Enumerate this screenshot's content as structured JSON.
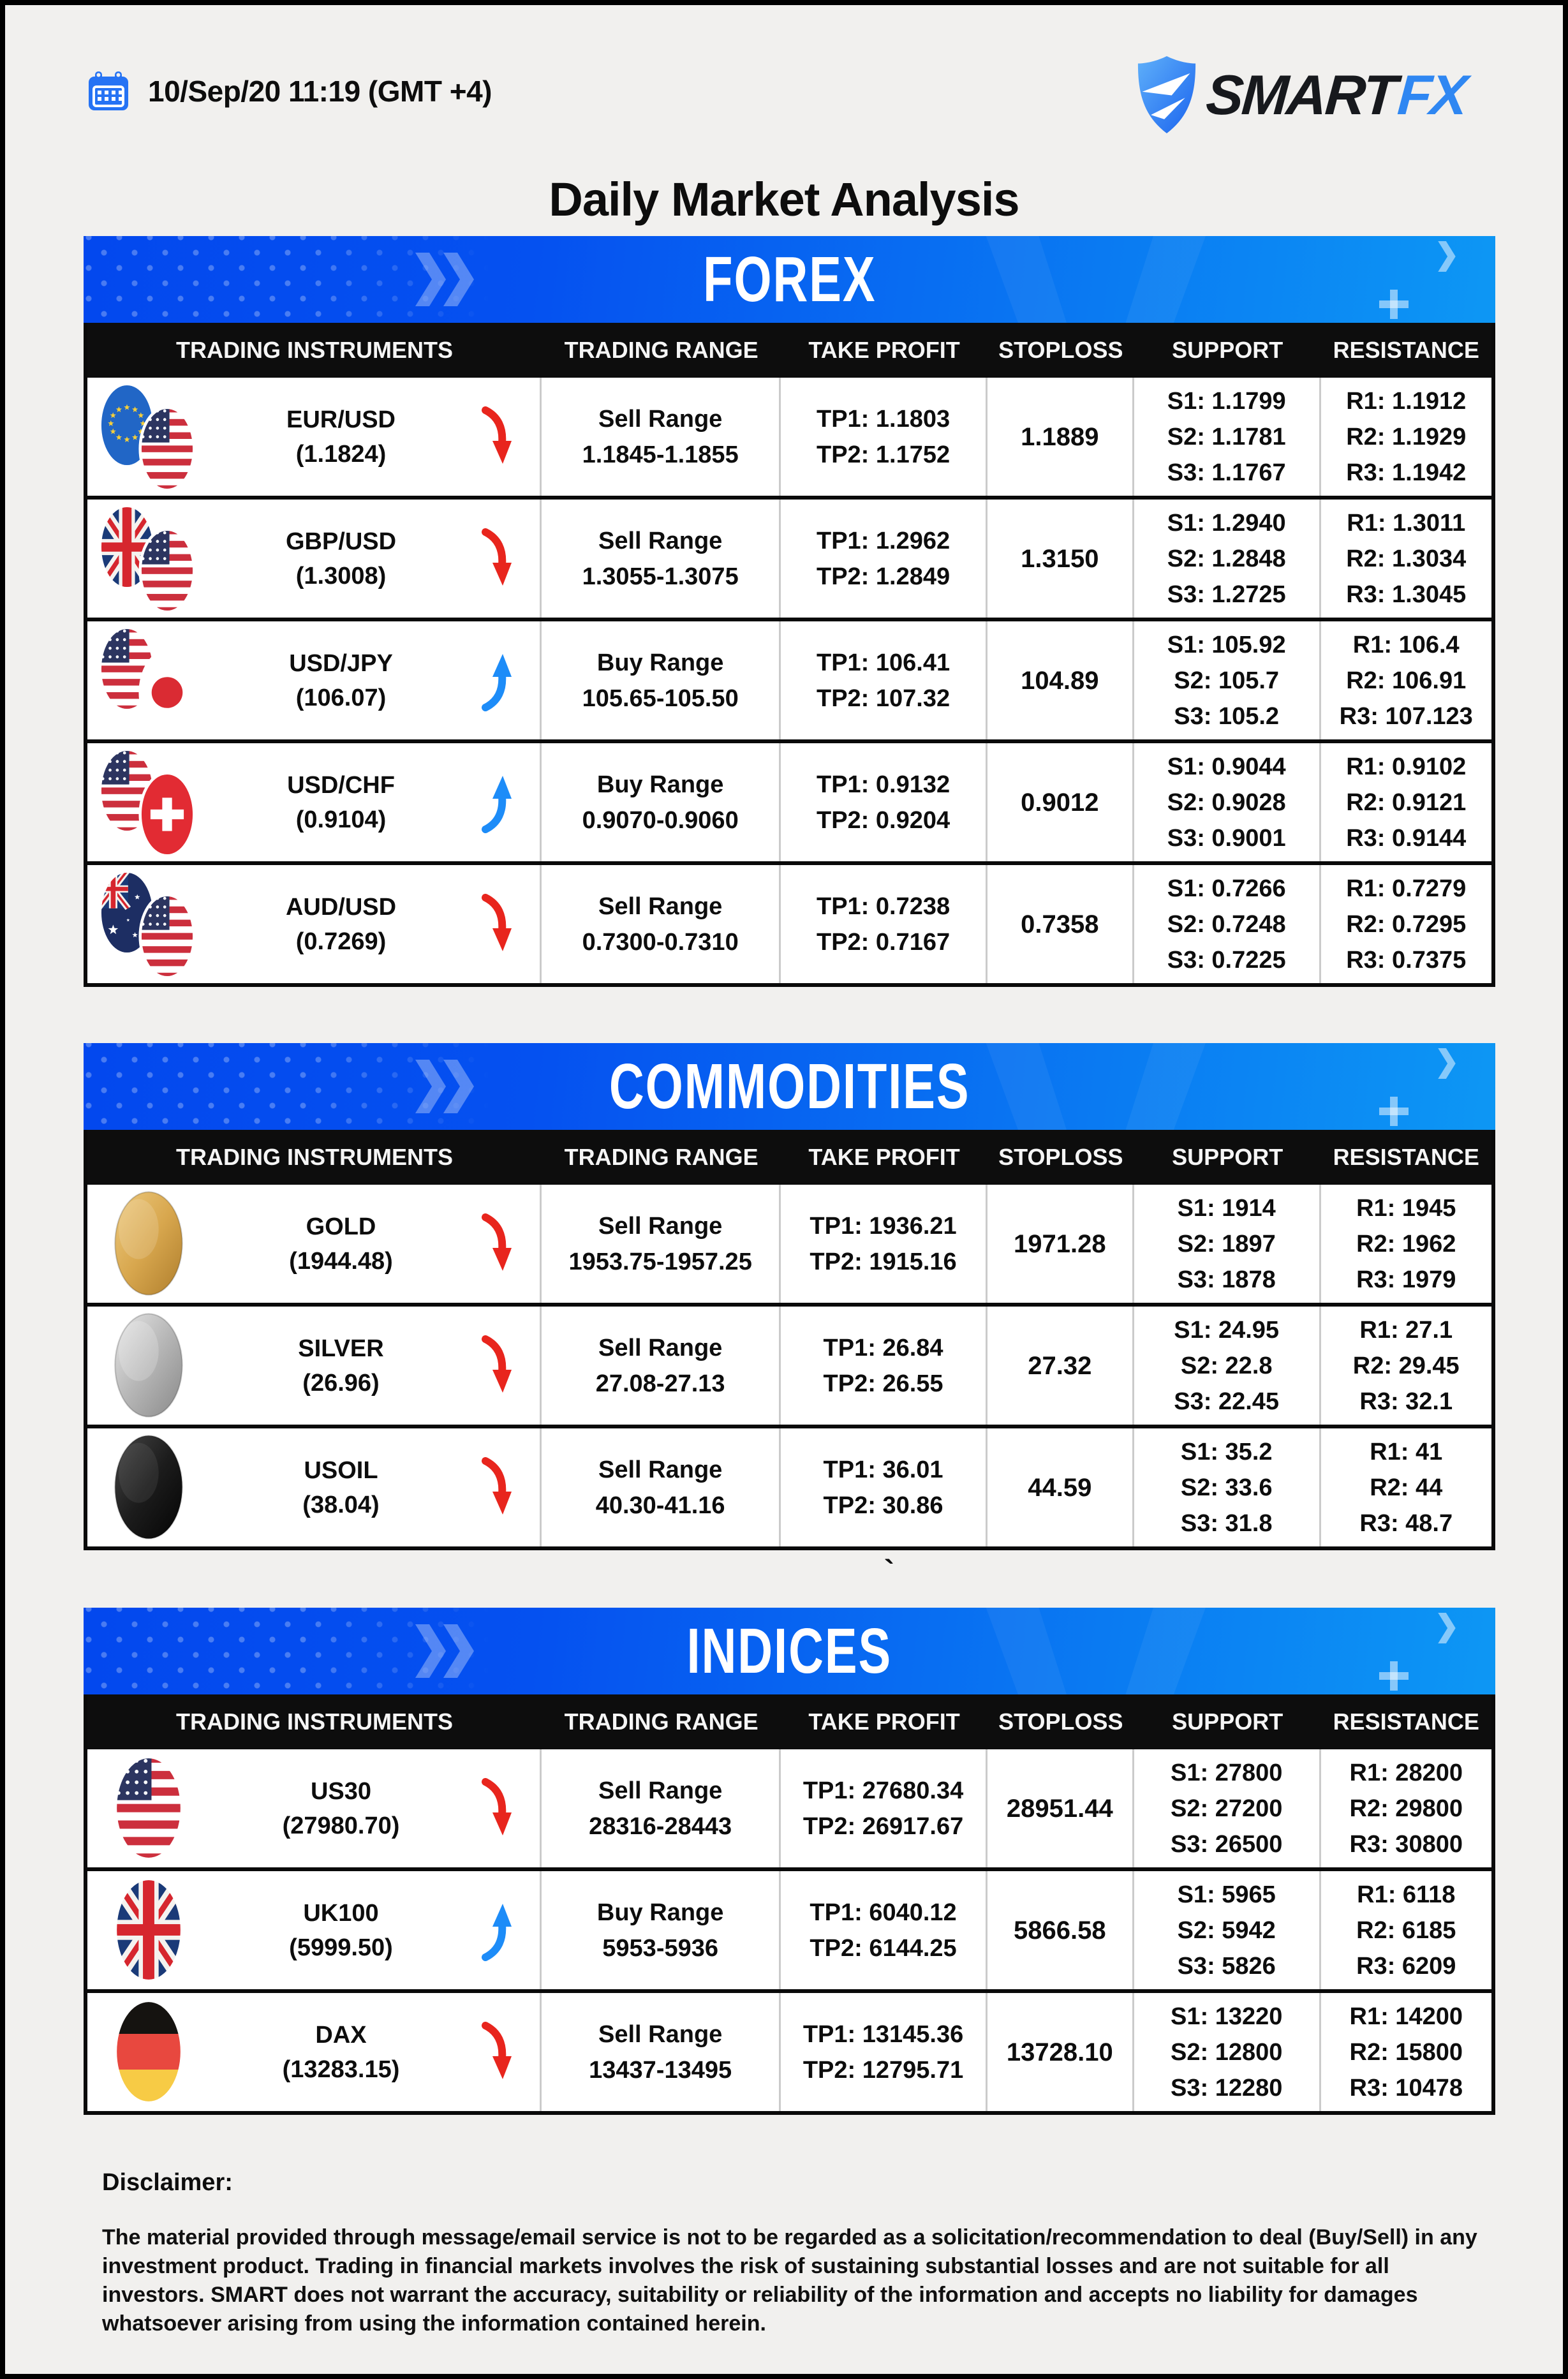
{
  "page": {
    "date": "10/Sep/20 11:19 (GMT +4)",
    "title": "Daily Market Analysis",
    "brand": {
      "smart": "SMART",
      "fx": "FX"
    },
    "stray_character": "`",
    "watermark_glyph": "V"
  },
  "colors": {
    "banner_gradient_start": "#0348ee",
    "banner_gradient_end": "#0d97f4",
    "header_row_bg": "#0d0d0d",
    "up_arrow": "#1d8cf8",
    "down_arrow": "#e8251d",
    "brand_blue": "#2f87f2",
    "calendar_blue": "#2673f4",
    "page_bg": "#f1f0ee"
  },
  "table_columns": [
    "TRADING INSTRUMENTS",
    "TRADING RANGE",
    "TAKE PROFIT",
    "STOPLOSS",
    "SUPPORT",
    "RESISTANCE"
  ],
  "sections": [
    {
      "title": "FOREX",
      "rows": [
        {
          "name": "EUR/USD",
          "price": "(1.1824)",
          "icons": [
            "eu-flag",
            "us-flag"
          ],
          "direction": "down",
          "range": [
            "Sell Range",
            "1.1845-1.1855"
          ],
          "take_profit": [
            "TP1: 1.1803",
            "TP2: 1.1752"
          ],
          "stoploss": "1.1889",
          "support": [
            "S1: 1.1799",
            "S2: 1.1781",
            "S3: 1.1767"
          ],
          "resistance": [
            "R1: 1.1912",
            "R2: 1.1929",
            "R3: 1.1942"
          ]
        },
        {
          "name": "GBP/USD",
          "price": "(1.3008)",
          "icons": [
            "uk-flag",
            "us-flag"
          ],
          "direction": "down",
          "range": [
            "Sell Range",
            "1.3055-1.3075"
          ],
          "take_profit": [
            "TP1: 1.2962",
            "TP2: 1.2849"
          ],
          "stoploss": "1.3150",
          "support": [
            "S1: 1.2940",
            "S2: 1.2848",
            "S3: 1.2725"
          ],
          "resistance": [
            "R1: 1.3011",
            "R2: 1.3034",
            "R3: 1.3045"
          ]
        },
        {
          "name": "USD/JPY",
          "price": "(106.07)",
          "icons": [
            "us-flag",
            "jp-flag"
          ],
          "direction": "up",
          "range": [
            "Buy Range",
            "105.65-105.50"
          ],
          "take_profit": [
            "TP1: 106.41",
            "TP2: 107.32"
          ],
          "stoploss": "104.89",
          "support": [
            "S1: 105.92",
            "S2: 105.7",
            "S3: 105.2"
          ],
          "resistance": [
            "R1: 106.4",
            "R2: 106.91",
            "R3: 107.123"
          ]
        },
        {
          "name": "USD/CHF",
          "price": "(0.9104)",
          "icons": [
            "us-flag",
            "ch-flag"
          ],
          "direction": "up",
          "range": [
            "Buy Range",
            "0.9070-0.9060"
          ],
          "take_profit": [
            "TP1: 0.9132",
            "TP2: 0.9204"
          ],
          "stoploss": "0.9012",
          "support": [
            "S1: 0.9044",
            "S2: 0.9028",
            "S3: 0.9001"
          ],
          "resistance": [
            "R1: 0.9102",
            "R2: 0.9121",
            "R3: 0.9144"
          ]
        },
        {
          "name": "AUD/USD",
          "price": "(0.7269)",
          "icons": [
            "au-flag",
            "us-flag"
          ],
          "direction": "down",
          "range": [
            "Sell Range",
            "0.7300-0.7310"
          ],
          "take_profit": [
            "TP1: 0.7238",
            "TP2: 0.7167"
          ],
          "stoploss": "0.7358",
          "support": [
            "S1: 0.7266",
            "S2: 0.7248",
            "S3: 0.7225"
          ],
          "resistance": [
            "R1: 0.7279",
            "R2: 0.7295",
            "R3: 0.7375"
          ]
        }
      ]
    },
    {
      "title": "COMMODITIES",
      "rows": [
        {
          "name": "GOLD",
          "price": "(1944.48)",
          "icons": [
            "gold-disc"
          ],
          "direction": "down",
          "range": [
            "Sell Range",
            "1953.75-1957.25"
          ],
          "take_profit": [
            "TP1: 1936.21",
            "TP2: 1915.16"
          ],
          "stoploss": "1971.28",
          "support": [
            "S1: 1914",
            "S2: 1897",
            "S3: 1878"
          ],
          "resistance": [
            "R1: 1945",
            "R2: 1962",
            "R3: 1979"
          ]
        },
        {
          "name": "SILVER",
          "price": "(26.96)",
          "icons": [
            "silver-disc"
          ],
          "direction": "down",
          "range": [
            "Sell Range",
            "27.08-27.13"
          ],
          "take_profit": [
            "TP1: 26.84",
            "TP2: 26.55"
          ],
          "stoploss": "27.32",
          "support": [
            "S1: 24.95",
            "S2: 22.8",
            "S3: 22.45"
          ],
          "resistance": [
            "R1: 27.1",
            "R2: 29.45",
            "R3: 32.1"
          ]
        },
        {
          "name": "USOIL",
          "price": "(38.04)",
          "icons": [
            "oil-disc"
          ],
          "direction": "down",
          "range": [
            "Sell Range",
            "40.30-41.16"
          ],
          "take_profit": [
            "TP1: 36.01",
            "TP2: 30.86"
          ],
          "stoploss": "44.59",
          "support": [
            "S1: 35.2",
            "S2: 33.6",
            "S3: 31.8"
          ],
          "resistance": [
            "R1: 41",
            "R2: 44",
            "R3: 48.7"
          ]
        }
      ]
    },
    {
      "title": "INDICES",
      "rows": [
        {
          "name": "US30",
          "price": "(27980.70)",
          "icons": [
            "us-flag"
          ],
          "direction": "down",
          "range": [
            "Sell Range",
            "28316-28443"
          ],
          "take_profit": [
            "TP1: 27680.34",
            "TP2: 26917.67"
          ],
          "stoploss": "28951.44",
          "support": [
            "S1: 27800",
            "S2: 27200",
            "S3: 26500"
          ],
          "resistance": [
            "R1: 28200",
            "R2: 29800",
            "R3: 30800"
          ]
        },
        {
          "name": "UK100",
          "price": "(5999.50)",
          "icons": [
            "uk-flag"
          ],
          "direction": "up",
          "range": [
            "Buy Range",
            "5953-5936"
          ],
          "take_profit": [
            "TP1: 6040.12",
            "TP2: 6144.25"
          ],
          "stoploss": "5866.58",
          "support": [
            "S1: 5965",
            "S2: 5942",
            "S3: 5826"
          ],
          "resistance": [
            "R1: 6118",
            "R2: 6185",
            "R3: 6209"
          ]
        },
        {
          "name": "DAX",
          "price": "(13283.15)",
          "icons": [
            "de-flag"
          ],
          "direction": "down",
          "range": [
            "Sell Range",
            "13437-13495"
          ],
          "take_profit": [
            "TP1: 13145.36",
            "TP2: 12795.71"
          ],
          "stoploss": "13728.10",
          "support": [
            "S1: 13220",
            "S2: 12800",
            "S3: 12280"
          ],
          "resistance": [
            "R1: 14200",
            "R2: 15800",
            "R3: 10478"
          ]
        }
      ]
    }
  ],
  "disclaimer": {
    "heading": "Disclaimer:",
    "body": "The material provided through message/email service is not to be regarded as a solicitation/recommendation to deal (Buy/Sell) in any investment product. Trading in financial markets involves the risk of sustaining substantial losses and are not suitable for all investors. SMART does not warrant the accuracy, suitability or reliability of the information and accepts no liability for damages whatsoever arising from using the information contained herein."
  }
}
